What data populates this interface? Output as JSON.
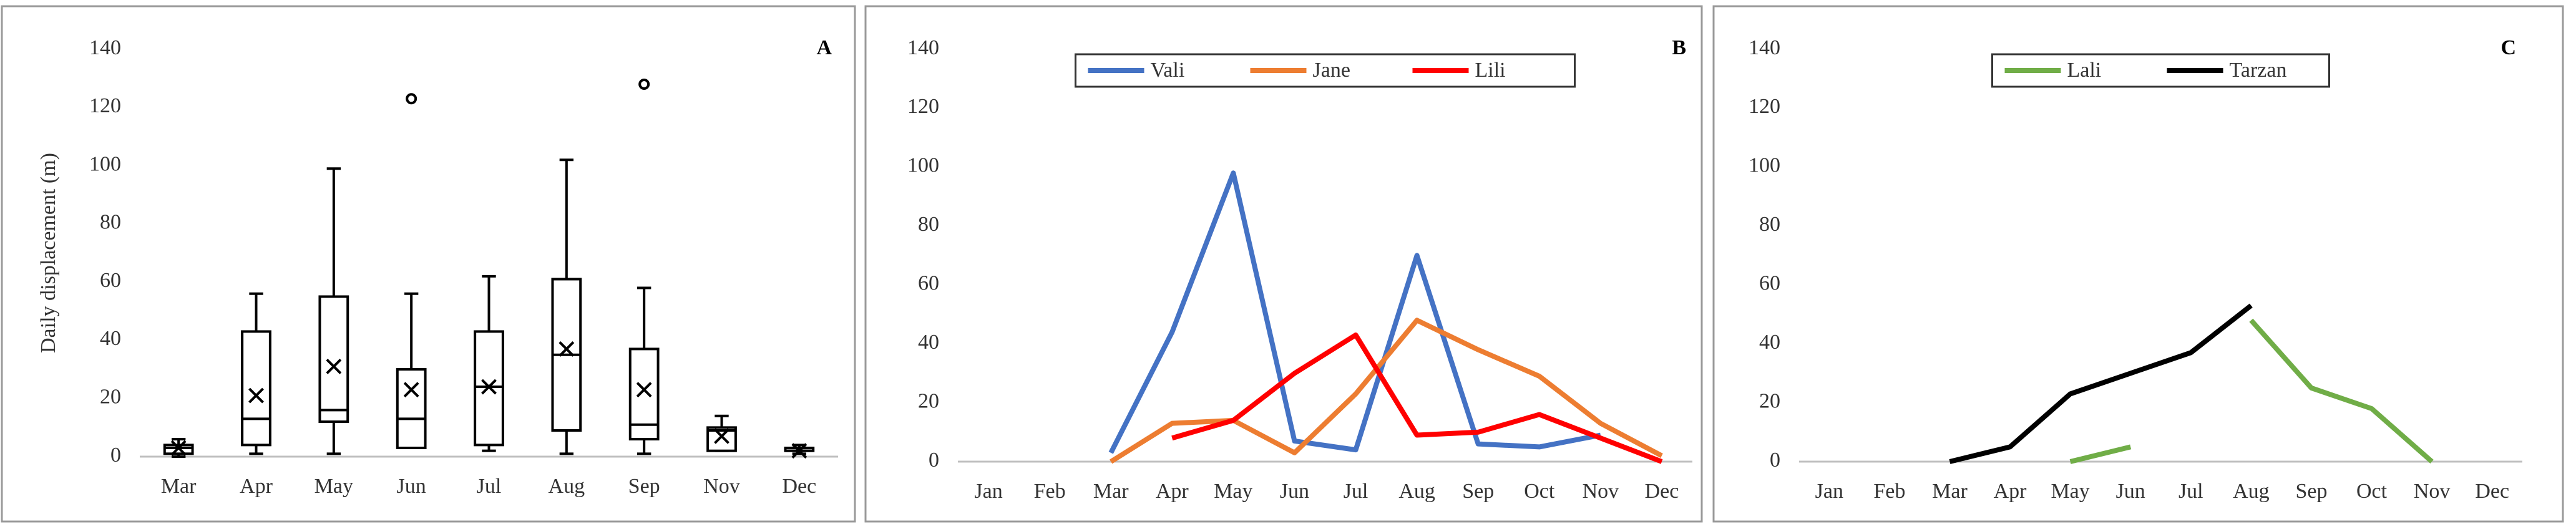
{
  "chart_data": [
    {
      "type": "box",
      "label": "A",
      "y_label": "Daily displacement (m)",
      "categories": [
        "Mar",
        "Apr",
        "May",
        "Jun",
        "Jul",
        "Aug",
        "Sep",
        "Nov",
        "Dec"
      ],
      "boxes": [
        {
          "min": 0,
          "q1": 1,
          "median": 3,
          "q3": 4,
          "max": 6,
          "mean": 3,
          "outliers": []
        },
        {
          "min": 1,
          "q1": 4,
          "median": 13,
          "q3": 43,
          "max": 56,
          "mean": 21,
          "outliers": []
        },
        {
          "min": 1,
          "q1": 12,
          "median": 16,
          "q3": 55,
          "max": 99,
          "mean": 31,
          "outliers": []
        },
        {
          "min": 3,
          "q1": 3,
          "median": 13,
          "q3": 30,
          "max": 56,
          "mean": 23,
          "outliers": [
            123
          ]
        },
        {
          "min": 2,
          "q1": 4,
          "median": 24,
          "q3": 43,
          "max": 62,
          "mean": 24,
          "outliers": []
        },
        {
          "min": 1,
          "q1": 9,
          "median": 35,
          "q3": 61,
          "max": 102,
          "mean": 37,
          "outliers": []
        },
        {
          "min": 1,
          "q1": 6,
          "median": 11,
          "q3": 37,
          "max": 58,
          "mean": 23,
          "outliers": [
            128
          ]
        },
        {
          "min": 2,
          "q1": 2,
          "median": 9,
          "q3": 10,
          "max": 14,
          "mean": 7,
          "outliers": []
        },
        {
          "min": 1,
          "q1": 2,
          "median": 2,
          "q3": 3,
          "max": 4,
          "mean": 2,
          "outliers": []
        }
      ],
      "color": "#000000",
      "ylim": [
        0,
        140
      ],
      "yticks": [
        0,
        20,
        40,
        60,
        80,
        100,
        120,
        140
      ]
    },
    {
      "type": "line",
      "label": "B",
      "legend": "top",
      "categories": [
        "Jan",
        "Feb",
        "Mar",
        "Apr",
        "May",
        "Jun",
        "Jul",
        "Aug",
        "Sep",
        "Oct",
        "Nov",
        "Dec"
      ],
      "series": [
        {
          "name": "Vali",
          "color": "#4472c4",
          "values": [
            null,
            null,
            3,
            44,
            98,
            7,
            4,
            70,
            6,
            5,
            9,
            null
          ]
        },
        {
          "name": "Jane",
          "color": "#ed7d31",
          "values": [
            null,
            null,
            0,
            13,
            14,
            3,
            23,
            48,
            38,
            29,
            13,
            2
          ]
        },
        {
          "name": "Lili",
          "color": "#ff0000",
          "values": [
            null,
            null,
            null,
            8,
            14,
            30,
            43,
            9,
            10,
            16,
            8,
            0
          ]
        }
      ],
      "ylim": [
        0,
        140
      ],
      "yticks": [
        0,
        20,
        40,
        60,
        80,
        100,
        120,
        140
      ]
    },
    {
      "type": "line",
      "label": "C",
      "legend": "top",
      "categories": [
        "Jan",
        "Feb",
        "Mar",
        "Apr",
        "May",
        "Jun",
        "Jul",
        "Aug",
        "Sep",
        "Oct",
        "Nov",
        "Dec"
      ],
      "series": [
        {
          "name": "Lali",
          "color": "#70ad47",
          "values": [
            null,
            null,
            null,
            null,
            0,
            5,
            null,
            48,
            25,
            18,
            0,
            null
          ]
        },
        {
          "name": "Tarzan",
          "color": "#000000",
          "values": [
            null,
            null,
            0,
            5,
            23,
            30,
            37,
            53,
            null,
            null,
            null,
            null
          ]
        }
      ],
      "ylim": [
        0,
        140
      ],
      "yticks": [
        0,
        20,
        40,
        60,
        80,
        100,
        120,
        140
      ]
    }
  ]
}
